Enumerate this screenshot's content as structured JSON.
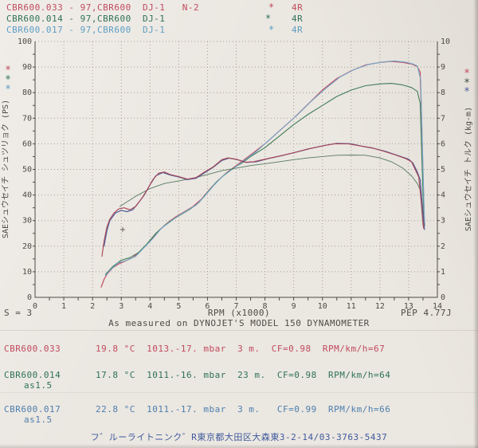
{
  "header": {
    "runs": [
      {
        "text": "CBR600.033 - 97,CBR600  DJ-1   N-2",
        "star": "*",
        "tag": "4R",
        "color": "#c14b5e"
      },
      {
        "text": "CBR600.014 - 97,CBR600  DJ-1",
        "star": "*",
        "tag": "4R",
        "color": "#2e7257"
      },
      {
        "text": "CBR600.017 - 97,CBR600  DJ-1",
        "star": "*",
        "tag": "4R",
        "color": "#5d9ec4"
      }
    ]
  },
  "chart_data": {
    "type": "line",
    "title": "",
    "x_axis": {
      "label": "RPM (x1000)",
      "min": 0,
      "max": 14,
      "tick_step": 1,
      "minor_step": 0.5
    },
    "y_left": {
      "label": "SAEシュウセイチ シュツリョク (PS)",
      "min": 0,
      "max": 100,
      "tick_step": 10,
      "minor_step": 5
    },
    "y_right": {
      "label": "SAEシュウセイチ トルク (kg-m)",
      "min": 0,
      "max": 10,
      "tick_step": 1,
      "minor_step": 0.5
    },
    "grid": "dotted",
    "legend_position": "none",
    "series": [
      {
        "name": "power CBR600.033",
        "axis": "left",
        "color": "#c14b5e",
        "width": 1.2,
        "points": [
          [
            2.3,
            4
          ],
          [
            2.4,
            7
          ],
          [
            2.5,
            9
          ],
          [
            2.7,
            11.5
          ],
          [
            2.9,
            13
          ],
          [
            3.1,
            14
          ],
          [
            3.4,
            15.5
          ],
          [
            3.7,
            18.5
          ],
          [
            4.0,
            22
          ],
          [
            4.3,
            26
          ],
          [
            4.6,
            29
          ],
          [
            4.9,
            31.5
          ],
          [
            5.2,
            33.5
          ],
          [
            5.5,
            35.5
          ],
          [
            5.8,
            38.5
          ],
          [
            6.1,
            42.5
          ],
          [
            6.4,
            46
          ],
          [
            6.7,
            49
          ],
          [
            7.0,
            51.5
          ],
          [
            7.3,
            54
          ],
          [
            7.6,
            56.5
          ],
          [
            8.0,
            60
          ],
          [
            8.5,
            65
          ],
          [
            9.0,
            70
          ],
          [
            9.5,
            75.5
          ],
          [
            10.0,
            81
          ],
          [
            10.5,
            85.5
          ],
          [
            11.0,
            88.5
          ],
          [
            11.5,
            90.8
          ],
          [
            12.0,
            91.8
          ],
          [
            12.4,
            92.2
          ],
          [
            12.8,
            91.8
          ],
          [
            13.1,
            91.2
          ],
          [
            13.3,
            90.2
          ],
          [
            13.4,
            88
          ],
          [
            13.45,
            70
          ],
          [
            13.5,
            48
          ],
          [
            13.55,
            28
          ]
        ]
      },
      {
        "name": "power CBR600.014",
        "axis": "left",
        "color": "#3f7d58",
        "width": 1.1,
        "points": [
          [
            2.45,
            9
          ],
          [
            2.7,
            12
          ],
          [
            3.0,
            14.5
          ],
          [
            3.3,
            15.5
          ],
          [
            3.6,
            17.5
          ],
          [
            3.9,
            21
          ],
          [
            4.2,
            25
          ],
          [
            4.5,
            28
          ],
          [
            4.8,
            30.5
          ],
          [
            5.1,
            32.5
          ],
          [
            5.4,
            34.5
          ],
          [
            5.7,
            37
          ],
          [
            6.0,
            41
          ],
          [
            6.3,
            45
          ],
          [
            6.6,
            48
          ],
          [
            6.9,
            50.5
          ],
          [
            7.2,
            52.5
          ],
          [
            7.5,
            55
          ],
          [
            8.0,
            58.5
          ],
          [
            8.5,
            63
          ],
          [
            9.0,
            67.5
          ],
          [
            9.5,
            71.5
          ],
          [
            10.0,
            75
          ],
          [
            10.5,
            78.5
          ],
          [
            11.0,
            81
          ],
          [
            11.5,
            82.7
          ],
          [
            12.0,
            83.4
          ],
          [
            12.4,
            83.6
          ],
          [
            12.8,
            83
          ],
          [
            13.1,
            82
          ],
          [
            13.3,
            80.5
          ],
          [
            13.4,
            76
          ],
          [
            13.5,
            40
          ],
          [
            13.55,
            28
          ]
        ]
      },
      {
        "name": "power CBR600.017",
        "axis": "left",
        "color": "#74a8c9",
        "width": 1.1,
        "points": [
          [
            2.45,
            8.5
          ],
          [
            2.6,
            10.5
          ],
          [
            2.9,
            13.5
          ],
          [
            3.2,
            14.5
          ],
          [
            3.5,
            16
          ],
          [
            3.8,
            19.5
          ],
          [
            4.1,
            23
          ],
          [
            4.4,
            27
          ],
          [
            4.7,
            29.5
          ],
          [
            5.0,
            32
          ],
          [
            5.3,
            34
          ],
          [
            5.6,
            36
          ],
          [
            5.9,
            39.5
          ],
          [
            6.2,
            43.5
          ],
          [
            6.5,
            47
          ],
          [
            6.8,
            49.5
          ],
          [
            7.1,
            52
          ],
          [
            7.4,
            54.5
          ],
          [
            7.7,
            57
          ],
          [
            8.1,
            61
          ],
          [
            8.6,
            66
          ],
          [
            9.1,
            71
          ],
          [
            9.6,
            76.5
          ],
          [
            10.1,
            81.5
          ],
          [
            10.6,
            86
          ],
          [
            11.1,
            89
          ],
          [
            11.6,
            91
          ],
          [
            12.1,
            92
          ],
          [
            12.5,
            92.4
          ],
          [
            12.9,
            91.9
          ],
          [
            13.15,
            91.2
          ],
          [
            13.3,
            90.4
          ],
          [
            13.42,
            85
          ],
          [
            13.5,
            50
          ],
          [
            13.55,
            29
          ]
        ]
      },
      {
        "name": "torque CBR600.014",
        "axis": "right",
        "color": "#557a60",
        "width": 0.9,
        "points": [
          [
            2.95,
            3.55
          ],
          [
            3.5,
            3.95
          ],
          [
            4.0,
            4.25
          ],
          [
            4.5,
            4.45
          ],
          [
            5.0,
            4.55
          ],
          [
            5.5,
            4.65
          ],
          [
            6.0,
            4.8
          ],
          [
            6.5,
            4.95
          ],
          [
            7.0,
            5.05
          ],
          [
            7.5,
            5.15
          ],
          [
            8.0,
            5.22
          ],
          [
            8.5,
            5.3
          ],
          [
            9.0,
            5.38
          ],
          [
            9.5,
            5.45
          ],
          [
            10.0,
            5.5
          ],
          [
            10.5,
            5.55
          ],
          [
            11.0,
            5.56
          ],
          [
            11.5,
            5.55
          ],
          [
            12.0,
            5.45
          ],
          [
            12.4,
            5.3
          ],
          [
            12.8,
            5.05
          ],
          [
            13.1,
            4.75
          ],
          [
            13.3,
            4.45
          ],
          [
            13.4,
            4.2
          ],
          [
            13.5,
            2.8
          ]
        ]
      },
      {
        "name": "torque CBR600.017",
        "axis": "right",
        "color": "#4d6099",
        "width": 1.2,
        "points": [
          [
            2.4,
            2.0
          ],
          [
            2.5,
            2.6
          ],
          [
            2.6,
            3.0
          ],
          [
            2.8,
            3.3
          ],
          [
            3.0,
            3.4
          ],
          [
            3.2,
            3.35
          ],
          [
            3.4,
            3.42
          ],
          [
            3.6,
            3.7
          ],
          [
            3.8,
            4.0
          ],
          [
            4.0,
            4.4
          ],
          [
            4.2,
            4.75
          ],
          [
            4.45,
            4.88
          ],
          [
            4.7,
            4.78
          ],
          [
            5.0,
            4.7
          ],
          [
            5.3,
            4.6
          ],
          [
            5.6,
            4.65
          ],
          [
            5.9,
            4.87
          ],
          [
            6.2,
            5.08
          ],
          [
            6.5,
            5.35
          ],
          [
            6.75,
            5.44
          ],
          [
            7.05,
            5.38
          ],
          [
            7.35,
            5.27
          ],
          [
            7.7,
            5.3
          ],
          [
            8.1,
            5.42
          ],
          [
            8.6,
            5.54
          ],
          [
            9.1,
            5.68
          ],
          [
            9.6,
            5.82
          ],
          [
            10.1,
            5.94
          ],
          [
            10.5,
            6.02
          ],
          [
            11.0,
            6.0
          ],
          [
            11.4,
            5.9
          ],
          [
            11.8,
            5.82
          ],
          [
            12.2,
            5.7
          ],
          [
            12.6,
            5.55
          ],
          [
            13.0,
            5.4
          ],
          [
            13.15,
            5.25
          ],
          [
            13.3,
            4.9
          ],
          [
            13.4,
            4.6
          ],
          [
            13.5,
            3.3
          ],
          [
            13.55,
            2.65
          ]
        ]
      },
      {
        "name": "torque CBR600.033",
        "axis": "right",
        "color": "#a84355",
        "width": 1.1,
        "points": [
          [
            2.33,
            1.6
          ],
          [
            2.4,
            2.2
          ],
          [
            2.5,
            2.75
          ],
          [
            2.6,
            3.05
          ],
          [
            2.75,
            3.3
          ],
          [
            2.9,
            3.45
          ],
          [
            3.1,
            3.5
          ],
          [
            3.3,
            3.42
          ],
          [
            3.5,
            3.55
          ],
          [
            3.7,
            3.85
          ],
          [
            3.9,
            4.2
          ],
          [
            4.1,
            4.6
          ],
          [
            4.3,
            4.85
          ],
          [
            4.5,
            4.9
          ],
          [
            4.7,
            4.8
          ],
          [
            5.0,
            4.72
          ],
          [
            5.3,
            4.62
          ],
          [
            5.6,
            4.68
          ],
          [
            5.9,
            4.9
          ],
          [
            6.2,
            5.1
          ],
          [
            6.5,
            5.38
          ],
          [
            6.7,
            5.45
          ],
          [
            7.0,
            5.4
          ],
          [
            7.3,
            5.28
          ],
          [
            7.6,
            5.3
          ],
          [
            8.0,
            5.4
          ],
          [
            8.5,
            5.52
          ],
          [
            9.0,
            5.65
          ],
          [
            9.5,
            5.8
          ],
          [
            10.0,
            5.92
          ],
          [
            10.4,
            6.0
          ],
          [
            10.9,
            6.0
          ],
          [
            11.3,
            5.92
          ],
          [
            11.7,
            5.85
          ],
          [
            12.1,
            5.72
          ],
          [
            12.5,
            5.58
          ],
          [
            12.9,
            5.42
          ],
          [
            13.1,
            5.3
          ],
          [
            13.25,
            4.95
          ],
          [
            13.35,
            4.7
          ],
          [
            13.45,
            3.6
          ],
          [
            13.52,
            2.7
          ]
        ]
      }
    ],
    "peak_markers": {
      "left": [
        {
          "color": "#c14b5e",
          "y": 88
        },
        {
          "color": "#2e7257",
          "y": 100
        },
        {
          "color": "#5d9ec4",
          "y": 112
        }
      ],
      "right": [
        {
          "color": "#c14b5e",
          "y": 92
        },
        {
          "color": "#3c4a42",
          "y": 104
        },
        {
          "color": "#4d5a9e",
          "y": 115
        }
      ]
    },
    "cross_mark": {
      "x": 3.05,
      "y_left": 26.5
    }
  },
  "axis_footer": {
    "s_label": "S = 3",
    "note": "As measured on DYNOJET'S MODEL 150 DYNAMOMETER",
    "pep": "PEP 4.77J"
  },
  "results": [
    {
      "name": "CBR600.033",
      "sub": "",
      "data": "19.8 °C  1013.-17. mbar  3 m.  CF=0.98  RPM/km/h=67"
    },
    {
      "name": "CBR600.014",
      "sub": "as1.5",
      "data": "17.8 °C  1011.-16. mbar  23 m.  CF=0.98  RPM/km/h=64"
    },
    {
      "name": "CBR600.017",
      "sub": "as1.5",
      "data": "22.8 °C  1011.-17. mbar  3 m.   CF=0.99  RPM/km/h=66"
    }
  ],
  "footer": {
    "text": "フ゛ルーライトニンク゛R東京都大田区大森東3-2-14/03-3763-5437"
  },
  "colors": {
    "paper": "#ebe7e1",
    "ink": "#4e4a44",
    "grid": "#a79d94",
    "red": "#c14b5e",
    "green": "#2e7257",
    "blue": "#5d9ec4",
    "torque_red": "#a84355",
    "torque_blue": "#4d6099",
    "torque_green": "#557a60",
    "footer_blue": "#3f5a9e"
  }
}
